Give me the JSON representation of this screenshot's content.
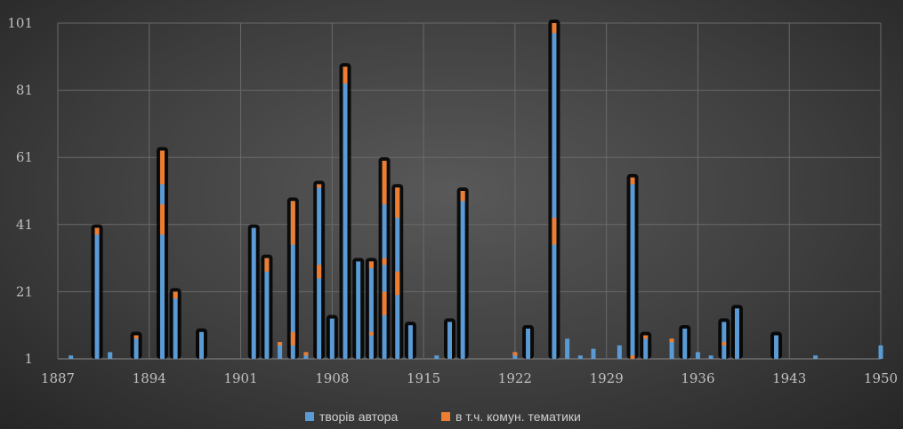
{
  "chart_data": {
    "type": "bar",
    "stacked": true,
    "xlim": [
      1887,
      1950
    ],
    "ylim": [
      1,
      101
    ],
    "x_ticks": [
      "1887",
      "1894",
      "1901",
      "1908",
      "1915",
      "1922",
      "1929",
      "1936",
      "1943",
      "1950"
    ],
    "y_ticks": [
      "1",
      "21",
      "41",
      "61",
      "81",
      "101"
    ],
    "grid": true,
    "legend_position": "bottom",
    "colors": {
      "primary": "#5b9bd5",
      "secondary": "#ed7d31"
    },
    "series": [
      {
        "name": "творів автора",
        "color": "#5b9bd5"
      },
      {
        "name": "в т.ч. комун. тематики",
        "color": "#ed7d31"
      }
    ],
    "points": [
      {
        "x": 1888,
        "total": 2,
        "orange": []
      },
      {
        "x": 1890,
        "total": 40,
        "orange": [
          [
            38,
            40
          ]
        ]
      },
      {
        "x": 1891,
        "total": 3,
        "orange": []
      },
      {
        "x": 1893,
        "total": 8,
        "orange": [
          [
            7,
            8
          ]
        ]
      },
      {
        "x": 1895,
        "total": 63,
        "orange": [
          [
            38,
            47
          ],
          [
            53,
            63
          ]
        ]
      },
      {
        "x": 1896,
        "total": 21,
        "orange": [
          [
            19,
            21
          ]
        ]
      },
      {
        "x": 1898,
        "total": 9,
        "orange": []
      },
      {
        "x": 1902,
        "total": 40,
        "orange": []
      },
      {
        "x": 1903,
        "total": 31,
        "orange": [
          [
            27,
            31
          ]
        ]
      },
      {
        "x": 1904,
        "total": 6,
        "orange": [
          [
            5,
            6
          ]
        ]
      },
      {
        "x": 1905,
        "total": 48,
        "orange": [
          [
            5,
            9
          ],
          [
            35,
            48
          ]
        ]
      },
      {
        "x": 1906,
        "total": 3,
        "orange": [
          [
            2,
            3
          ]
        ]
      },
      {
        "x": 1907,
        "total": 53,
        "orange": [
          [
            25,
            29
          ],
          [
            52,
            53
          ]
        ]
      },
      {
        "x": 1908,
        "total": 13,
        "orange": []
      },
      {
        "x": 1909,
        "total": 88,
        "orange": [
          [
            83,
            88
          ]
        ]
      },
      {
        "x": 1910,
        "total": 30,
        "orange": []
      },
      {
        "x": 1911,
        "total": 30,
        "orange": [
          [
            8,
            9
          ],
          [
            28,
            30
          ]
        ]
      },
      {
        "x": 1912,
        "total": 60,
        "orange": [
          [
            14,
            21
          ],
          [
            29,
            31
          ],
          [
            47,
            60
          ]
        ]
      },
      {
        "x": 1913,
        "total": 52,
        "orange": [
          [
            20,
            27
          ],
          [
            43,
            52
          ]
        ]
      },
      {
        "x": 1914,
        "total": 11,
        "orange": []
      },
      {
        "x": 1916,
        "total": 2,
        "orange": []
      },
      {
        "x": 1917,
        "total": 12,
        "orange": []
      },
      {
        "x": 1918,
        "total": 51,
        "orange": [
          [
            48,
            51
          ]
        ]
      },
      {
        "x": 1922,
        "total": 3,
        "orange": [
          [
            2,
            3
          ]
        ]
      },
      {
        "x": 1923,
        "total": 10,
        "orange": []
      },
      {
        "x": 1925,
        "total": 101,
        "orange": [
          [
            35,
            43
          ],
          [
            98,
            101
          ]
        ]
      },
      {
        "x": 1926,
        "total": 7,
        "orange": []
      },
      {
        "x": 1927,
        "total": 2,
        "orange": []
      },
      {
        "x": 1928,
        "total": 4,
        "orange": []
      },
      {
        "x": 1930,
        "total": 5,
        "orange": []
      },
      {
        "x": 1931,
        "total": 55,
        "orange": [
          [
            1,
            2
          ],
          [
            53,
            55
          ]
        ]
      },
      {
        "x": 1932,
        "total": 8,
        "orange": [
          [
            7,
            8
          ]
        ]
      },
      {
        "x": 1934,
        "total": 7,
        "orange": [
          [
            6,
            7
          ]
        ]
      },
      {
        "x": 1935,
        "total": 10,
        "orange": []
      },
      {
        "x": 1936,
        "total": 3,
        "orange": []
      },
      {
        "x": 1937,
        "total": 2,
        "orange": []
      },
      {
        "x": 1938,
        "total": 12,
        "orange": [
          [
            5,
            6
          ]
        ]
      },
      {
        "x": 1939,
        "total": 16,
        "orange": []
      },
      {
        "x": 1942,
        "total": 8,
        "orange": []
      },
      {
        "x": 1945,
        "total": 2,
        "orange": []
      },
      {
        "x": 1950,
        "total": 5,
        "orange": []
      }
    ]
  }
}
